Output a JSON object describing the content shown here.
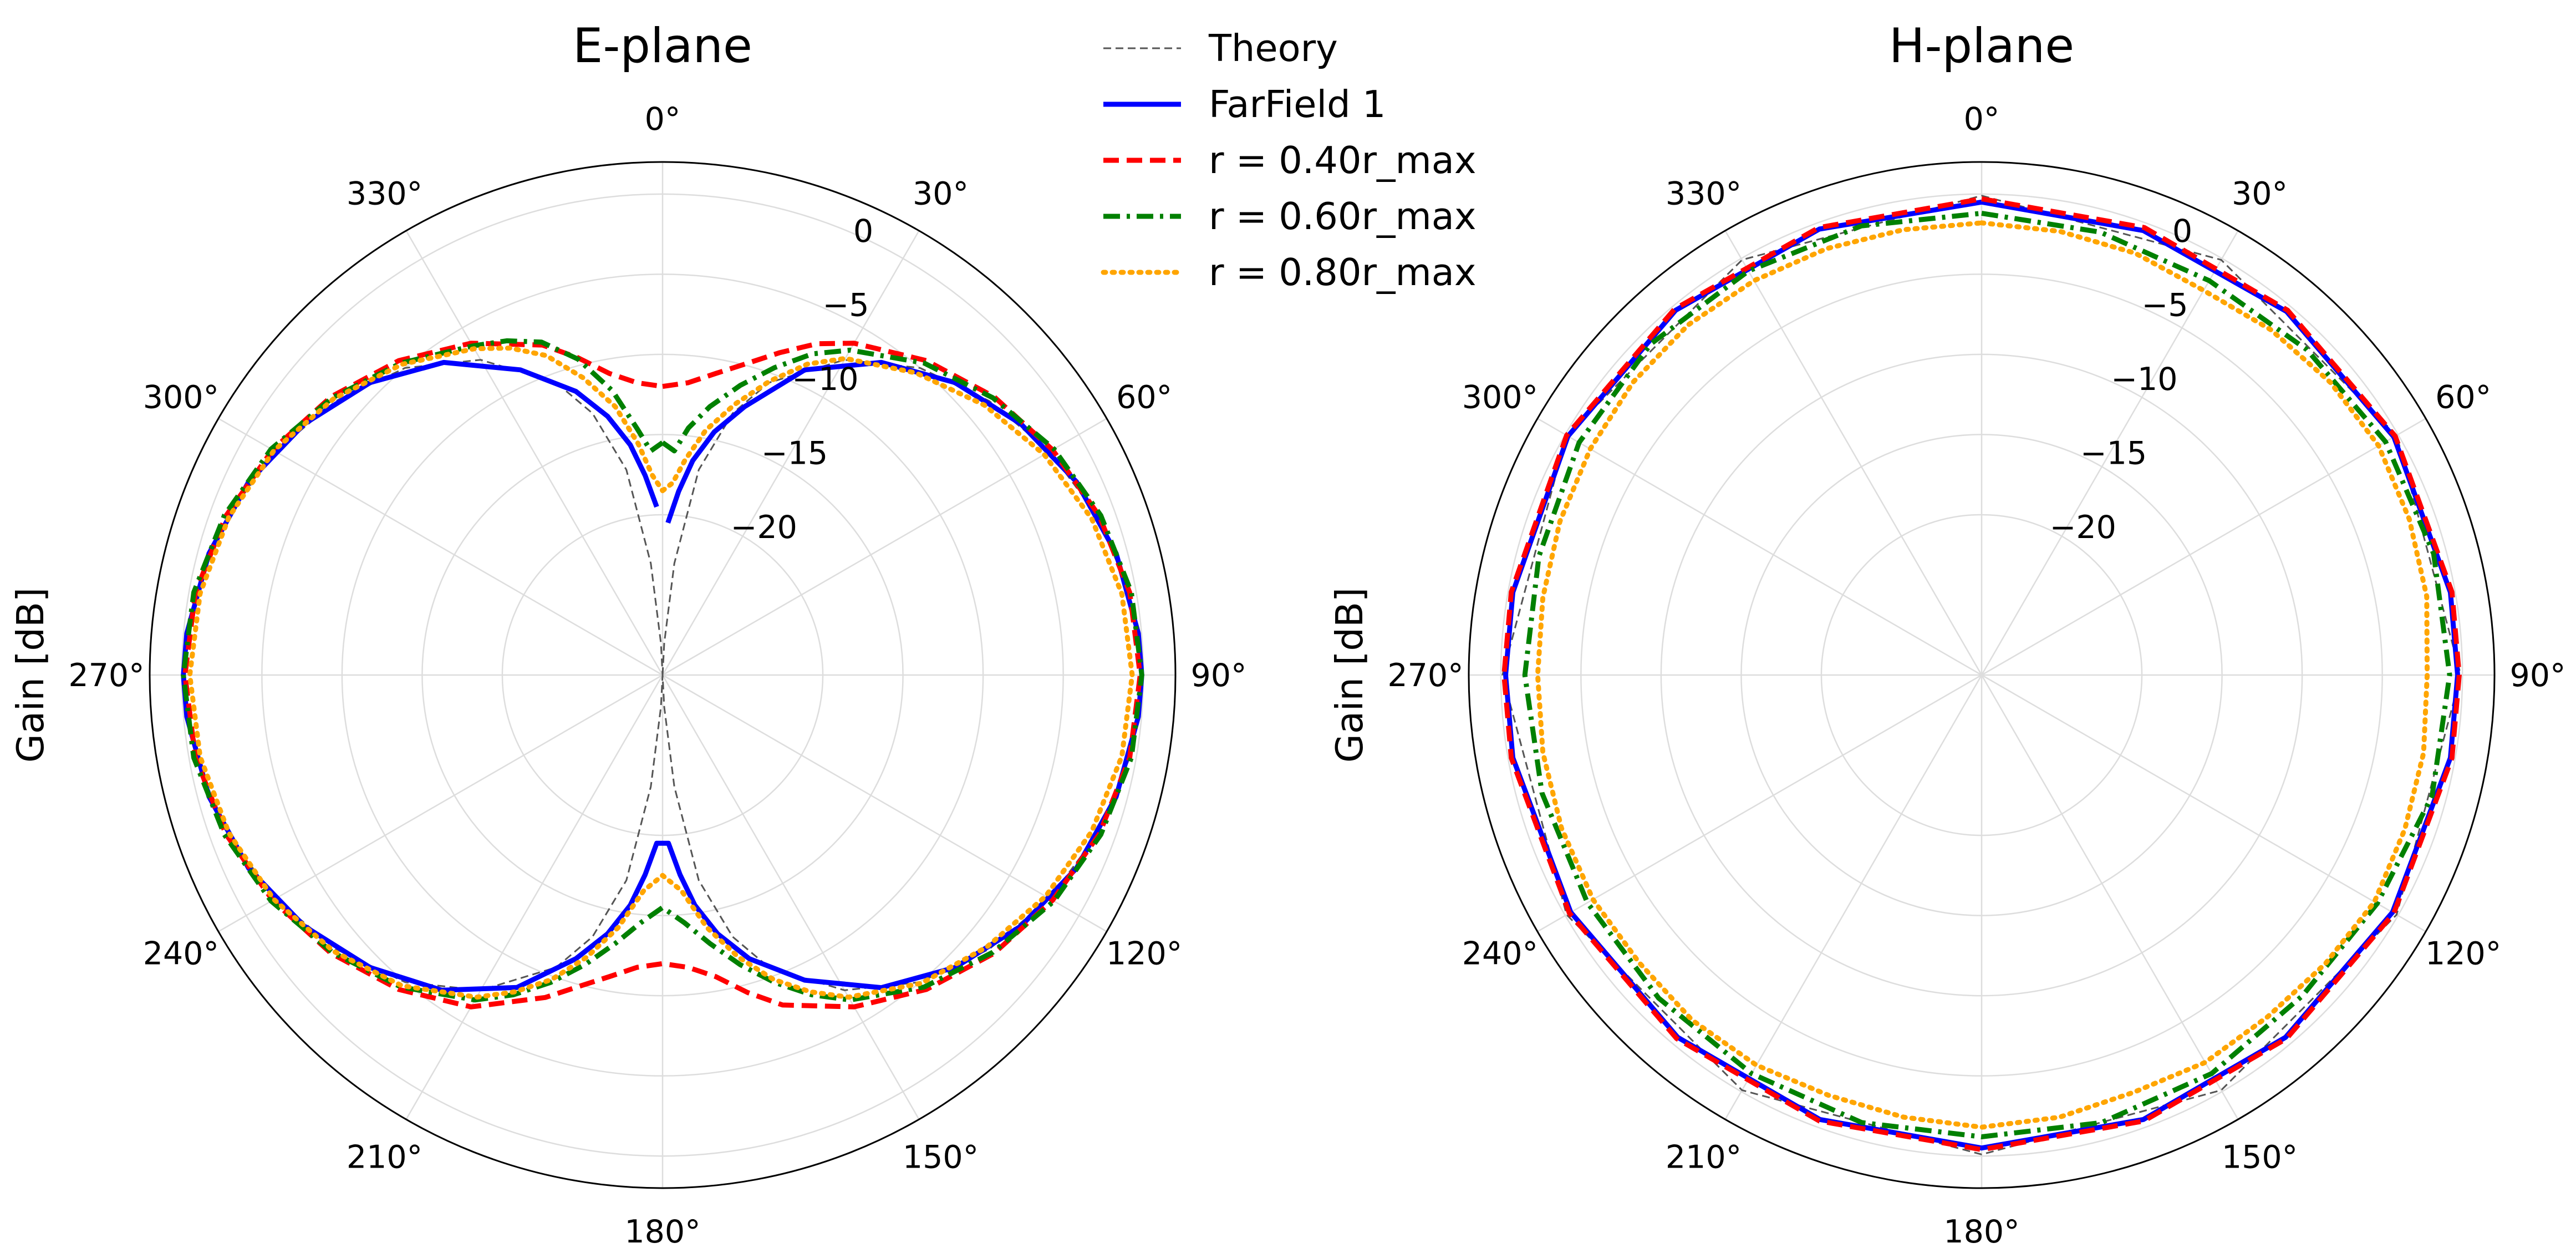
{
  "chart_data": [
    {
      "type": "line",
      "projection": "polar",
      "title": "E-plane",
      "ylabel": "Gain [dB]",
      "theta_zero_location": "top",
      "theta_direction": "clockwise",
      "theta_ticks": [
        "0°",
        "30°",
        "60°",
        "90°",
        "120°",
        "150°",
        "180°",
        "210°",
        "240°",
        "270°",
        "300°",
        "330°"
      ],
      "r_ticks": [
        "−20",
        "−15",
        "−10",
        "−5",
        "0"
      ],
      "r_tick_values": [
        -20,
        -15,
        -10,
        -5,
        0
      ],
      "rlim": [
        -30,
        2
      ],
      "grid": true,
      "x_unit": "degrees",
      "y_unit": "dB",
      "series": [
        {
          "name": "Theory",
          "color": "#555555",
          "style": "dashed-thin",
          "x": [
            0,
            3,
            6,
            10,
            15,
            20,
            30,
            40,
            50,
            60,
            70,
            80,
            90,
            100,
            110,
            120,
            130,
            140,
            150,
            160,
            165,
            170,
            174,
            177,
            180,
            183,
            186,
            190,
            195,
            200,
            210,
            220,
            230,
            240,
            250,
            260,
            270,
            280,
            290,
            300,
            310,
            320,
            330,
            340,
            345,
            350,
            354,
            357,
            360
          ],
          "y": [
            -30,
            -28,
            -23,
            -17,
            -13.1,
            -10.6,
            -7.3,
            -5.0,
            -3.4,
            -2.1,
            -1.1,
            -0.4,
            -0.1,
            -0.4,
            -1.1,
            -2.1,
            -3.4,
            -5.0,
            -7.3,
            -10.6,
            -13.1,
            -17,
            -23,
            -28,
            -30,
            -28,
            -23,
            -17,
            -13.1,
            -10.6,
            -7.3,
            -5.0,
            -3.4,
            -2.1,
            -1.1,
            -0.4,
            -0.1,
            -0.4,
            -1.1,
            -2.1,
            -3.4,
            -5.0,
            -7.3,
            -10.6,
            -13.1,
            -17,
            -23,
            -28,
            -30
          ]
        },
        {
          "name": "FarField 1",
          "color": "#0000ff",
          "style": "solid",
          "x": [
            2,
            5,
            8,
            12,
            17,
            25,
            35,
            45,
            55,
            65,
            75,
            85,
            90,
            95,
            105,
            115,
            125,
            135,
            145,
            155,
            163,
            168,
            172,
            175,
            178,
            182,
            185,
            188,
            192,
            197,
            205,
            215,
            225,
            235,
            245,
            255,
            265,
            270,
            275,
            285,
            295,
            305,
            315,
            325,
            335,
            343,
            348,
            352,
            355,
            358
          ],
          "y": [
            -20.5,
            -18.5,
            -16.5,
            -14.5,
            -12.5,
            -9.0,
            -6.2,
            -4.2,
            -2.7,
            -1.5,
            -0.7,
            -0.2,
            -0.1,
            -0.2,
            -0.7,
            -1.5,
            -2.7,
            -4.2,
            -6.2,
            -9.0,
            -11.5,
            -13.5,
            -15.5,
            -17.5,
            -19.5,
            -19.5,
            -17.5,
            -15.5,
            -13.5,
            -11.5,
            -8.5,
            -6.0,
            -4.2,
            -2.7,
            -1.5,
            -0.7,
            -0.2,
            -0.1,
            -0.2,
            -0.7,
            -1.5,
            -2.7,
            -4.2,
            -6.2,
            -9.0,
            -11.5,
            -13.5,
            -15.5,
            -17.5,
            -19.5
          ]
        },
        {
          "name": "r = 0.40r_max",
          "color": "#ff0000",
          "style": "dashed",
          "x": [
            0,
            5,
            10,
            15,
            20,
            25,
            30,
            40,
            50,
            60,
            70,
            80,
            90,
            100,
            110,
            120,
            130,
            140,
            150,
            160,
            165,
            170,
            175,
            180,
            185,
            190,
            195,
            200,
            210,
            220,
            230,
            240,
            250,
            260,
            270,
            280,
            290,
            300,
            310,
            320,
            330,
            340,
            345,
            350,
            355,
            360
          ],
          "y": [
            -12.0,
            -11.7,
            -10.9,
            -9.9,
            -8.6,
            -7.2,
            -6.1,
            -4.4,
            -3.0,
            -1.9,
            -1.0,
            -0.4,
            -0.2,
            -0.4,
            -1.0,
            -1.9,
            -3.0,
            -4.4,
            -6.1,
            -8.1,
            -9.5,
            -10.9,
            -11.7,
            -12.0,
            -11.7,
            -10.9,
            -9.9,
            -8.6,
            -6.1,
            -4.4,
            -3.0,
            -1.9,
            -1.0,
            -0.4,
            -0.2,
            -0.4,
            -1.0,
            -1.9,
            -3.0,
            -4.4,
            -6.1,
            -8.1,
            -9.5,
            -10.9,
            -11.7,
            -12.0
          ]
        },
        {
          "name": "r = 0.60r_max",
          "color": "#008000",
          "style": "dashdot",
          "x": [
            0,
            3,
            6,
            10,
            15,
            20,
            25,
            30,
            40,
            50,
            60,
            70,
            80,
            90,
            100,
            110,
            120,
            130,
            140,
            150,
            155,
            160,
            165,
            170,
            175,
            180,
            185,
            190,
            195,
            200,
            205,
            210,
            220,
            230,
            240,
            250,
            260,
            270,
            280,
            290,
            300,
            310,
            320,
            330,
            335,
            340,
            345,
            350,
            354,
            357,
            360
          ],
          "y": [
            -15.5,
            -16.0,
            -14.5,
            -13.0,
            -11.3,
            -9.6,
            -7.9,
            -6.6,
            -4.6,
            -3.1,
            -1.8,
            -0.9,
            -0.3,
            -0.1,
            -0.3,
            -0.9,
            -1.8,
            -3.1,
            -4.6,
            -6.6,
            -8.0,
            -9.6,
            -11.3,
            -13.0,
            -14.5,
            -15.5,
            -14.5,
            -13.0,
            -11.3,
            -9.6,
            -8.0,
            -6.6,
            -4.6,
            -3.1,
            -1.8,
            -0.9,
            -0.3,
            -0.1,
            -0.3,
            -0.9,
            -1.8,
            -3.1,
            -4.6,
            -6.3,
            -7.0,
            -7.9,
            -9.6,
            -12.0,
            -14.5,
            -16.0,
            -15.5
          ]
        },
        {
          "name": "r = 0.80r_max",
          "color": "#ffa500",
          "style": "dotted",
          "x": [
            0,
            3,
            6,
            10,
            15,
            20,
            25,
            30,
            40,
            50,
            60,
            70,
            80,
            90,
            100,
            110,
            120,
            130,
            140,
            150,
            155,
            160,
            165,
            170,
            175,
            180,
            185,
            190,
            195,
            200,
            205,
            210,
            220,
            230,
            240,
            250,
            260,
            270,
            280,
            290,
            300,
            310,
            320,
            330,
            335,
            340,
            345,
            350,
            354,
            357,
            360
          ],
          "y": [
            -18.5,
            -18.0,
            -16.5,
            -14.5,
            -12.5,
            -10.5,
            -8.6,
            -7.2,
            -5.4,
            -3.8,
            -2.5,
            -1.5,
            -0.9,
            -0.7,
            -0.9,
            -1.5,
            -2.4,
            -3.6,
            -4.9,
            -6.8,
            -8.2,
            -9.8,
            -11.8,
            -14.0,
            -16.5,
            -17.5,
            -16.5,
            -14.0,
            -11.8,
            -9.8,
            -8.2,
            -6.8,
            -4.7,
            -3.2,
            -2.0,
            -1.2,
            -0.7,
            -0.5,
            -0.7,
            -1.2,
            -2.0,
            -3.2,
            -4.7,
            -6.5,
            -7.5,
            -8.8,
            -10.8,
            -13.0,
            -15.5,
            -17.5,
            -18.5
          ]
        }
      ]
    },
    {
      "type": "line",
      "projection": "polar",
      "title": "H-plane",
      "ylabel": "Gain [dB]",
      "theta_zero_location": "top",
      "theta_direction": "clockwise",
      "theta_ticks": [
        "0°",
        "30°",
        "60°",
        "90°",
        "120°",
        "150°",
        "180°",
        "210°",
        "240°",
        "270°",
        "300°",
        "330°"
      ],
      "r_ticks": [
        "−20",
        "−15",
        "−10",
        "−5",
        "0"
      ],
      "r_tick_values": [
        -20,
        -15,
        -10,
        -5,
        0
      ],
      "rlim": [
        -30,
        2
      ],
      "grid": true,
      "x_unit": "degrees",
      "y_unit": "dB",
      "series": [
        {
          "name": "Theory",
          "color": "#555555",
          "style": "dashed-thin",
          "x": [
            0,
            30,
            60,
            90,
            120,
            150,
            180,
            210,
            240,
            270,
            300,
            330,
            360
          ],
          "y": [
            -0.1,
            -0.1,
            -0.1,
            -0.1,
            -0.1,
            -0.1,
            -0.1,
            -0.1,
            -0.1,
            -0.1,
            -0.1,
            -0.1,
            -0.1
          ]
        },
        {
          "name": "FarField 1",
          "color": "#0000ff",
          "style": "solid",
          "x": [
            0,
            20,
            40,
            60,
            80,
            90,
            100,
            120,
            140,
            160,
            180,
            200,
            220,
            240,
            260,
            270,
            280,
            300,
            320,
            340,
            360
          ],
          "y": [
            -0.5,
            -0.5,
            -0.4,
            -0.3,
            -0.3,
            -0.3,
            -0.3,
            -0.4,
            -0.5,
            -0.5,
            -0.5,
            -0.5,
            -0.5,
            -0.4,
            -0.3,
            -0.3,
            -0.3,
            -0.2,
            -0.3,
            -0.4,
            -0.5
          ]
        },
        {
          "name": "r = 0.40r_max",
          "color": "#ff0000",
          "style": "dashed",
          "x": [
            0,
            20,
            40,
            60,
            80,
            90,
            100,
            120,
            140,
            160,
            180,
            200,
            220,
            240,
            260,
            270,
            280,
            300,
            320,
            340,
            360
          ],
          "y": [
            -0.3,
            -0.3,
            -0.3,
            -0.2,
            -0.2,
            -0.2,
            -0.2,
            -0.3,
            -0.4,
            -0.4,
            -0.4,
            -0.4,
            -0.4,
            -0.3,
            -0.2,
            -0.2,
            -0.2,
            -0.1,
            -0.2,
            -0.3,
            -0.3
          ]
        },
        {
          "name": "r = 0.60r_max",
          "color": "#008000",
          "style": "dashdot",
          "x": [
            0,
            15,
            30,
            45,
            60,
            75,
            90,
            105,
            120,
            135,
            150,
            165,
            180,
            195,
            210,
            225,
            240,
            255,
            270,
            285,
            300,
            315,
            330,
            345,
            360
          ],
          "y": [
            -1.2,
            -1.4,
            -1.6,
            -1.3,
            -0.9,
            -0.8,
            -0.8,
            -0.9,
            -1.5,
            -1.7,
            -1.3,
            -1.1,
            -1.2,
            -1.1,
            -1.3,
            -1.5,
            -1.6,
            -1.6,
            -1.5,
            -1.4,
            -1.0,
            -0.8,
            -0.9,
            -1.0,
            -1.2
          ]
        },
        {
          "name": "r = 0.80r_max",
          "color": "#ffa500",
          "style": "dotted",
          "x": [
            0,
            10,
            20,
            30,
            40,
            50,
            60,
            70,
            80,
            90,
            100,
            110,
            120,
            130,
            140,
            150,
            160,
            170,
            180,
            190,
            200,
            210,
            220,
            230,
            240,
            250,
            260,
            270,
            280,
            290,
            300,
            310,
            320,
            330,
            340,
            350,
            360
          ],
          "y": [
            -1.8,
            -1.9,
            -2.0,
            -2.3,
            -1.9,
            -1.6,
            -1.4,
            -1.6,
            -1.8,
            -2.2,
            -2.0,
            -1.9,
            -1.7,
            -2.0,
            -2.2,
            -2.1,
            -2.3,
            -2.0,
            -1.8,
            -2.0,
            -2.1,
            -1.9,
            -1.9,
            -2.1,
            -2.0,
            -2.1,
            -2.2,
            -2.3,
            -2.2,
            -2.0,
            -1.8,
            -1.6,
            -1.5,
            -1.6,
            -1.7,
            -1.8,
            -1.8
          ]
        }
      ]
    }
  ],
  "legend": {
    "placement": "top-center",
    "entries": [
      {
        "label": "Theory",
        "color": "#555555",
        "style": "dashed-thin"
      },
      {
        "label": "FarField 1",
        "color": "#0000ff",
        "style": "solid"
      },
      {
        "label": "r = 0.40r_max",
        "color": "#ff0000",
        "style": "dashed"
      },
      {
        "label": "r = 0.60r_max",
        "color": "#008000",
        "style": "dashdot"
      },
      {
        "label": "r = 0.80r_max",
        "color": "#ffa500",
        "style": "dotted"
      }
    ]
  }
}
